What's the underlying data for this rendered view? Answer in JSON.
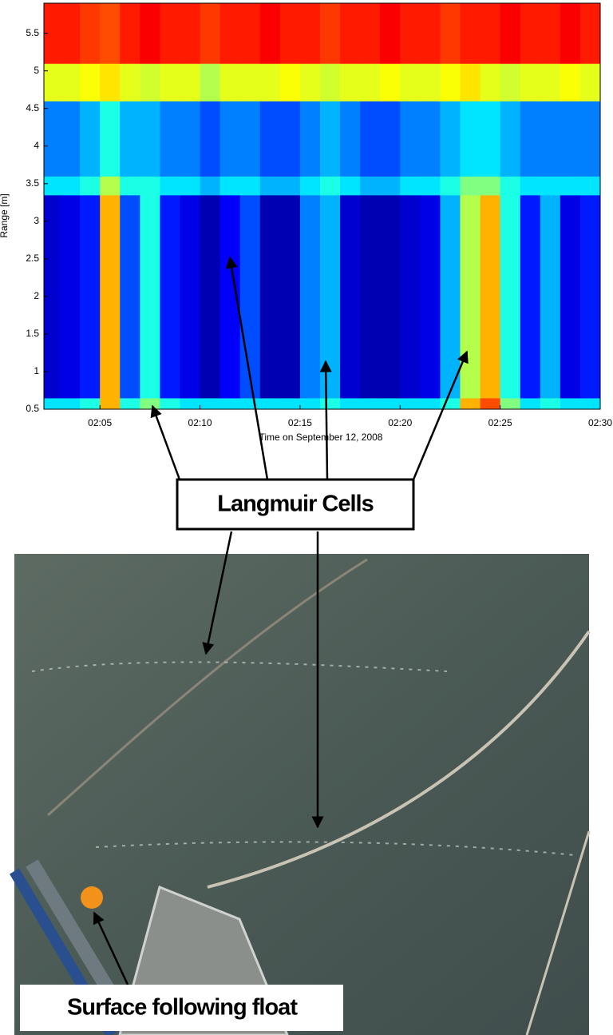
{
  "chart_data": {
    "type": "heatmap",
    "colormap": "jet",
    "xlabel": "Time on September 12, 2008",
    "ylabel": "Range [m]",
    "xlim": [
      2.2,
      30
    ],
    "ylim": [
      0.5,
      5.9
    ],
    "xticks": [
      {
        "value": 5,
        "label": "02:05"
      },
      {
        "value": 10,
        "label": "02:10"
      },
      {
        "value": 15,
        "label": "02:15"
      },
      {
        "value": 20,
        "label": "02:20"
      },
      {
        "value": 25,
        "label": "02:25"
      },
      {
        "value": 30,
        "label": "02:30"
      }
    ],
    "yticks": [
      0.5,
      1,
      1.5,
      2,
      2.5,
      3,
      3.5,
      4,
      4.5,
      5,
      5.5
    ],
    "x_bins": [
      2.2,
      3,
      4,
      5,
      6,
      7,
      8,
      9,
      10,
      11,
      12,
      13,
      14,
      15,
      16,
      17,
      18,
      19,
      20,
      21,
      22,
      23,
      24,
      25,
      26,
      27,
      28,
      29,
      30
    ],
    "y_bins": [
      0.5,
      0.65,
      3.35,
      3.6,
      4.6,
      5.1,
      5.9
    ],
    "z": [
      [
        0.35,
        0.35,
        0.4,
        0.7,
        0.4,
        0.5,
        0.4,
        0.35,
        0.35,
        0.35,
        0.35,
        0.35,
        0.35,
        0.35,
        0.4,
        0.35,
        0.35,
        0.35,
        0.35,
        0.35,
        0.4,
        0.7,
        0.8,
        0.5,
        0.35,
        0.4,
        0.35,
        0.35
      ],
      [
        0.08,
        0.1,
        0.15,
        0.7,
        0.2,
        0.4,
        0.15,
        0.1,
        0.05,
        0.12,
        0.2,
        0.05,
        0.05,
        0.25,
        0.3,
        0.08,
        0.05,
        0.05,
        0.08,
        0.1,
        0.3,
        0.55,
        0.7,
        0.4,
        0.15,
        0.3,
        0.1,
        0.15
      ],
      [
        0.35,
        0.35,
        0.4,
        0.55,
        0.4,
        0.4,
        0.35,
        0.35,
        0.3,
        0.35,
        0.35,
        0.3,
        0.3,
        0.35,
        0.4,
        0.35,
        0.3,
        0.3,
        0.35,
        0.35,
        0.4,
        0.5,
        0.5,
        0.4,
        0.35,
        0.35,
        0.35,
        0.35
      ],
      [
        0.25,
        0.25,
        0.3,
        0.4,
        0.3,
        0.3,
        0.25,
        0.25,
        0.2,
        0.25,
        0.25,
        0.2,
        0.2,
        0.25,
        0.3,
        0.25,
        0.2,
        0.2,
        0.25,
        0.25,
        0.3,
        0.35,
        0.35,
        0.3,
        0.25,
        0.25,
        0.25,
        0.25
      ],
      [
        0.6,
        0.6,
        0.62,
        0.65,
        0.6,
        0.58,
        0.6,
        0.6,
        0.55,
        0.6,
        0.6,
        0.6,
        0.62,
        0.6,
        0.58,
        0.6,
        0.6,
        0.62,
        0.6,
        0.6,
        0.62,
        0.65,
        0.6,
        0.58,
        0.6,
        0.6,
        0.62,
        0.6
      ],
      [
        0.85,
        0.85,
        0.82,
        0.8,
        0.85,
        0.88,
        0.85,
        0.85,
        0.82,
        0.85,
        0.85,
        0.88,
        0.85,
        0.85,
        0.82,
        0.85,
        0.85,
        0.88,
        0.85,
        0.85,
        0.82,
        0.85,
        0.85,
        0.88,
        0.85,
        0.85,
        0.88,
        0.85
      ]
    ]
  },
  "annotations": [
    "Langmuir Cells",
    "Surface following float"
  ]
}
